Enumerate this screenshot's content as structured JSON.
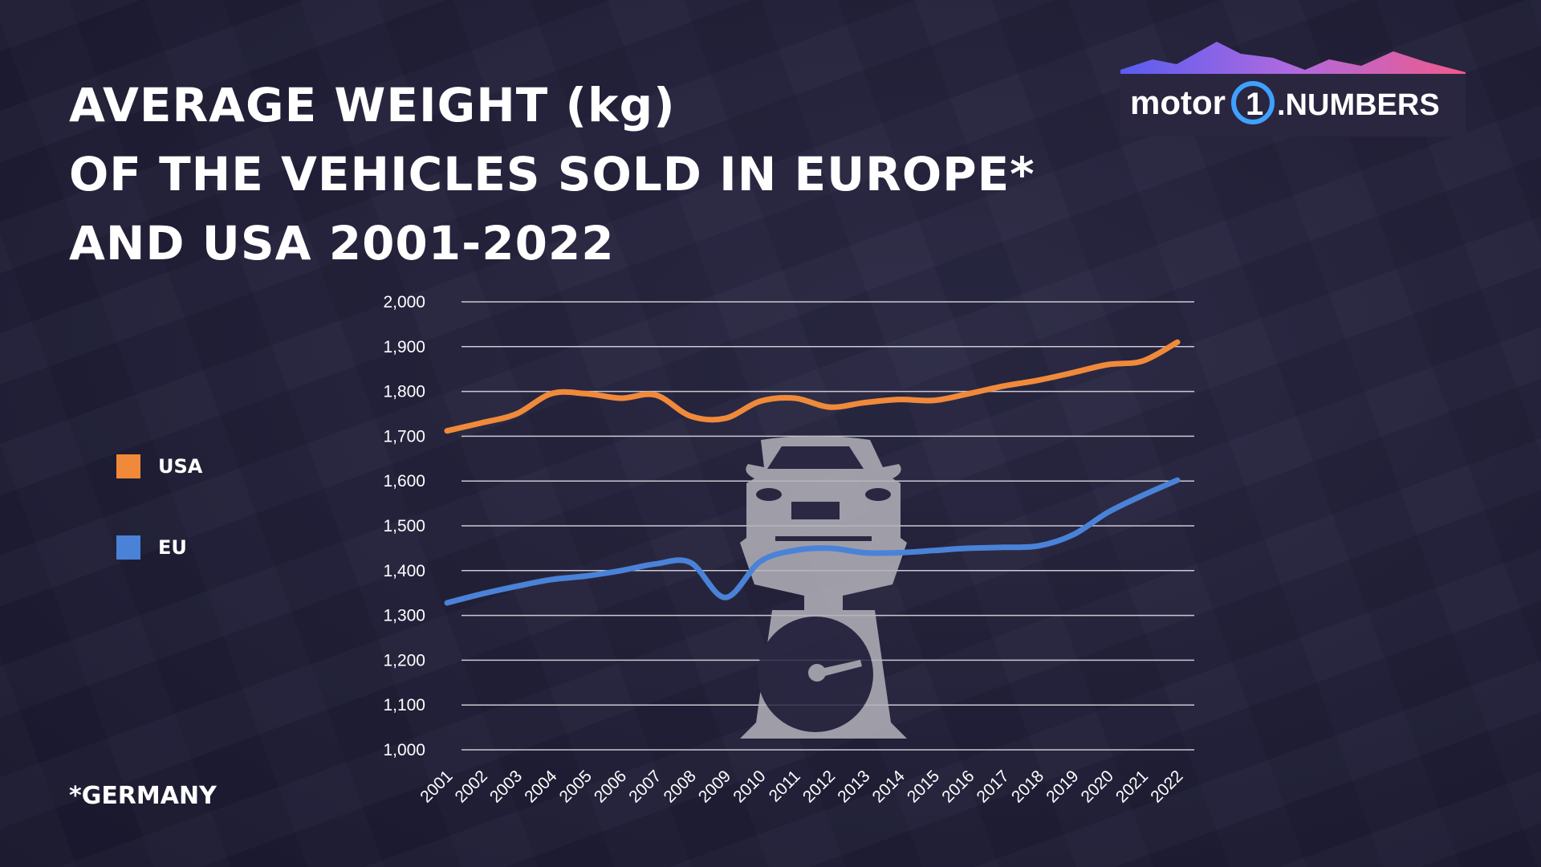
{
  "title_lines": [
    "AVERAGE WEIGHT (kg)",
    "OF THE VEHICLES SOLD IN EUROPE*",
    "AND USA 2001-2022"
  ],
  "logo": {
    "text": "motor1.NUMBERS"
  },
  "footnote": "*GERMANY",
  "chart_data": {
    "type": "line",
    "title": "AVERAGE WEIGHT (kg) OF THE VEHICLES SOLD IN EUROPE* AND USA 2001-2022",
    "x": [
      "2001",
      "2002",
      "2003",
      "2004",
      "2005",
      "2006",
      "2007",
      "2008",
      "2009",
      "2010",
      "2011",
      "2012",
      "2013",
      "2014",
      "2015",
      "2016",
      "2017",
      "2018",
      "2019",
      "2020",
      "2021",
      "2022"
    ],
    "ylim": [
      1000,
      2000
    ],
    "yticks": [
      1000,
      1100,
      1200,
      1300,
      1400,
      1500,
      1600,
      1700,
      1800,
      1900,
      2000
    ],
    "ytick_labels": [
      "1,000",
      "1,100",
      "1,200",
      "1,300",
      "1,400",
      "1,500",
      "1,600",
      "1,700",
      "1,800",
      "1,900",
      "2,000"
    ],
    "grid": true,
    "legend_placement": "left",
    "series": [
      {
        "name": "USA",
        "color": "#f08a3a",
        "values": [
          1712,
          1730,
          1750,
          1795,
          1795,
          1785,
          1792,
          1745,
          1740,
          1778,
          1785,
          1765,
          1775,
          1782,
          1780,
          1795,
          1812,
          1825,
          1842,
          1860,
          1868,
          1910
        ]
      },
      {
        "name": "EU",
        "color": "#4a82d8",
        "values": [
          1328,
          1348,
          1365,
          1380,
          1388,
          1400,
          1415,
          1418,
          1340,
          1420,
          1445,
          1450,
          1440,
          1440,
          1445,
          1450,
          1452,
          1455,
          1480,
          1530,
          1568,
          1602
        ]
      }
    ]
  }
}
